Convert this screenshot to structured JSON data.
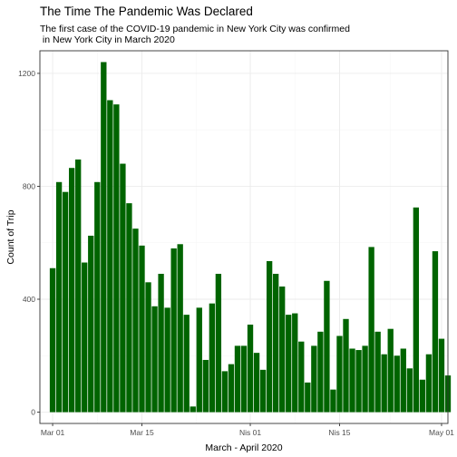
{
  "chart_data": {
    "type": "bar",
    "title": "The Time The Pandemic Was Declared",
    "subtitle_lines": [
      "The first case of the COVID-19 pandemic in New York City was confirmed",
      " in New York City in March 2020"
    ],
    "xlabel": "March - April 2020",
    "ylabel": "Count of Trip",
    "x_start": "2020-03-01",
    "x_range": [
      "2020-02-28",
      "2020-05-02"
    ],
    "ylim": [
      -40,
      1280
    ],
    "y_ticks": [
      0,
      400,
      800,
      1200
    ],
    "x_ticks": [
      {
        "date": "2020-03-01",
        "label": "Mar 01"
      },
      {
        "date": "2020-03-15",
        "label": "Mar 15"
      },
      {
        "date": "2020-04-01",
        "label": "Nis 01"
      },
      {
        "date": "2020-04-15",
        "label": "Nis 15"
      },
      {
        "date": "2020-05-01",
        "label": "May 01"
      }
    ],
    "bar_color": "#006400",
    "grid": true,
    "values": [
      510,
      815,
      780,
      865,
      895,
      530,
      625,
      815,
      1240,
      1105,
      1090,
      880,
      740,
      650,
      590,
      460,
      375,
      490,
      370,
      580,
      595,
      345,
      20,
      370,
      185,
      385,
      490,
      145,
      170,
      235,
      235,
      310,
      210,
      150,
      535,
      490,
      445,
      345,
      350,
      250,
      105,
      235,
      285,
      465,
      80,
      270,
      330,
      225,
      220,
      235,
      585,
      285,
      205,
      295,
      200,
      225,
      155,
      725,
      115,
      205,
      570,
      260,
      130
    ]
  }
}
